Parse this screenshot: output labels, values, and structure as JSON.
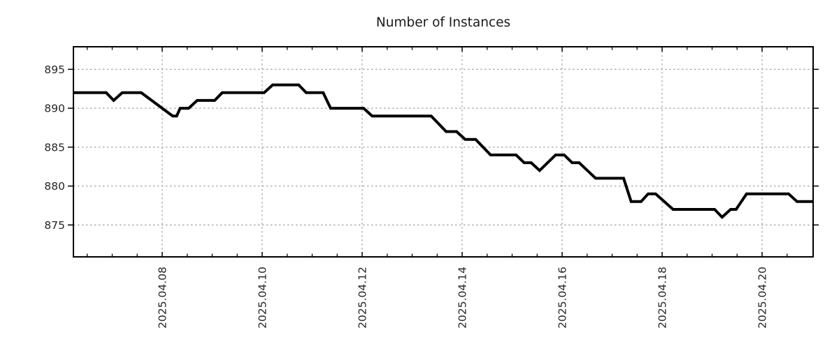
{
  "title": "Number of Instances",
  "colors": {
    "line": "#000000",
    "grid": "#a9a9a9",
    "axis": "#000000",
    "text": "#262626",
    "background": "#ffffff"
  },
  "chart_data": {
    "type": "line",
    "title": "Number of Instances",
    "xlabel": "",
    "ylabel": "",
    "grid": true,
    "legend_position": "none",
    "x_unit": "2025 April day-of-month (fractional day)",
    "xlim": [
      6.224,
      21.021
    ],
    "ylim": [
      870.9,
      897.9
    ],
    "y_ticks": [
      875,
      880,
      885,
      890,
      895
    ],
    "y_tick_labels": [
      "875",
      "880",
      "885",
      "890",
      "895"
    ],
    "x_major_ticks": [
      8,
      10,
      12,
      14,
      16,
      18,
      20
    ],
    "x_tick_labels": [
      "2025.04.08",
      "2025.04.10",
      "2025.04.12",
      "2025.04.14",
      "2025.04.16",
      "2025.04.18",
      "2025.04.20"
    ],
    "x_minor_tick_step": 0.5,
    "series": [
      {
        "name": "instances",
        "color": "#000000",
        "points": [
          [
            6.22,
            892
          ],
          [
            6.88,
            892
          ],
          [
            7.03,
            891
          ],
          [
            7.2,
            892
          ],
          [
            7.58,
            892
          ],
          [
            8.21,
            889
          ],
          [
            8.29,
            889
          ],
          [
            8.36,
            890
          ],
          [
            8.53,
            890
          ],
          [
            8.7,
            891
          ],
          [
            9.05,
            891
          ],
          [
            9.2,
            892
          ],
          [
            10.04,
            892
          ],
          [
            10.21,
            893
          ],
          [
            10.73,
            893
          ],
          [
            10.88,
            892
          ],
          [
            11.22,
            892
          ],
          [
            11.37,
            890
          ],
          [
            12.03,
            890
          ],
          [
            12.2,
            889
          ],
          [
            13.38,
            889
          ],
          [
            13.68,
            887
          ],
          [
            13.89,
            887
          ],
          [
            14.06,
            886
          ],
          [
            14.27,
            886
          ],
          [
            14.57,
            884
          ],
          [
            15.08,
            884
          ],
          [
            15.24,
            883
          ],
          [
            15.38,
            883
          ],
          [
            15.55,
            882
          ],
          [
            15.87,
            884
          ],
          [
            16.04,
            884
          ],
          [
            16.2,
            883
          ],
          [
            16.34,
            883
          ],
          [
            16.67,
            881
          ],
          [
            17.23,
            881
          ],
          [
            17.38,
            878
          ],
          [
            17.58,
            878
          ],
          [
            17.72,
            879
          ],
          [
            17.87,
            879
          ],
          [
            18.22,
            877
          ],
          [
            19.05,
            877
          ],
          [
            19.2,
            876
          ],
          [
            19.37,
            877
          ],
          [
            19.48,
            877
          ],
          [
            19.69,
            879
          ],
          [
            20.53,
            879
          ],
          [
            20.7,
            878
          ],
          [
            21.02,
            878
          ]
        ]
      }
    ]
  }
}
